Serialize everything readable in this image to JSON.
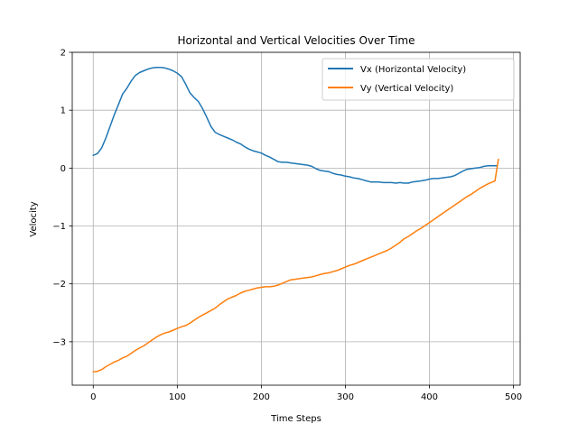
{
  "chart_data": {
    "type": "line",
    "title": "Horizontal and Vertical Velocities Over Time",
    "xlabel": "Time Steps",
    "ylabel": "Velocity",
    "xlim": [
      -25,
      508
    ],
    "ylim": [
      -3.75,
      2.0
    ],
    "xticks": [
      0,
      100,
      200,
      300,
      400,
      500
    ],
    "xtick_labels": [
      "0",
      "100",
      "200",
      "300",
      "400",
      "500"
    ],
    "yticks": [
      -3,
      -2,
      -1,
      0,
      1,
      2
    ],
    "ytick_labels": [
      "−3",
      "−2",
      "−1",
      "0",
      "1",
      "2"
    ],
    "grid": true,
    "legend_position": "upper right",
    "series": [
      {
        "name": "Vx (Horizontal Velocity)",
        "color": "#1f77b4",
        "x": [
          0,
          5,
          10,
          15,
          20,
          25,
          30,
          35,
          40,
          45,
          50,
          55,
          60,
          65,
          70,
          75,
          80,
          85,
          90,
          95,
          100,
          105,
          110,
          115,
          120,
          125,
          130,
          135,
          140,
          145,
          150,
          155,
          160,
          165,
          170,
          175,
          180,
          185,
          190,
          195,
          200,
          205,
          210,
          215,
          220,
          225,
          230,
          235,
          240,
          245,
          250,
          255,
          260,
          265,
          270,
          275,
          280,
          285,
          290,
          295,
          300,
          305,
          310,
          315,
          320,
          325,
          330,
          335,
          340,
          345,
          350,
          355,
          360,
          365,
          370,
          375,
          380,
          385,
          390,
          395,
          400,
          405,
          410,
          415,
          420,
          425,
          430,
          435,
          440,
          445,
          450,
          455,
          460,
          465,
          470,
          475,
          480
        ],
        "y": [
          0.22,
          0.25,
          0.35,
          0.52,
          0.72,
          0.92,
          1.1,
          1.28,
          1.38,
          1.5,
          1.6,
          1.65,
          1.68,
          1.71,
          1.73,
          1.74,
          1.74,
          1.73,
          1.71,
          1.68,
          1.64,
          1.58,
          1.45,
          1.3,
          1.22,
          1.15,
          1.03,
          0.88,
          0.72,
          0.62,
          0.58,
          0.55,
          0.52,
          0.49,
          0.45,
          0.42,
          0.37,
          0.33,
          0.3,
          0.28,
          0.26,
          0.22,
          0.19,
          0.15,
          0.11,
          0.1,
          0.1,
          0.09,
          0.08,
          0.07,
          0.06,
          0.05,
          0.03,
          -0.01,
          -0.04,
          -0.05,
          -0.06,
          -0.09,
          -0.11,
          -0.12,
          -0.14,
          -0.15,
          -0.17,
          -0.18,
          -0.2,
          -0.22,
          -0.24,
          -0.24,
          -0.24,
          -0.25,
          -0.25,
          -0.25,
          -0.26,
          -0.25,
          -0.26,
          -0.26,
          -0.24,
          -0.23,
          -0.22,
          -0.21,
          -0.19,
          -0.18,
          -0.18,
          -0.17,
          -0.16,
          -0.15,
          -0.13,
          -0.09,
          -0.05,
          -0.02,
          -0.01,
          0.0,
          0.01,
          0.03,
          0.04,
          0.04,
          0.04
        ]
      },
      {
        "name": "Vy (Vertical Velocity)",
        "color": "#ff7f0e",
        "x": [
          0,
          5,
          10,
          15,
          20,
          25,
          30,
          35,
          40,
          45,
          50,
          55,
          60,
          65,
          70,
          75,
          80,
          85,
          90,
          95,
          100,
          105,
          110,
          115,
          120,
          125,
          130,
          135,
          140,
          145,
          150,
          155,
          160,
          165,
          170,
          175,
          180,
          185,
          190,
          195,
          200,
          205,
          210,
          215,
          220,
          225,
          230,
          235,
          240,
          245,
          250,
          255,
          260,
          265,
          270,
          275,
          280,
          285,
          290,
          295,
          300,
          305,
          310,
          315,
          320,
          325,
          330,
          335,
          340,
          345,
          350,
          355,
          360,
          365,
          370,
          375,
          380,
          385,
          390,
          395,
          400,
          405,
          410,
          415,
          420,
          425,
          430,
          435,
          440,
          445,
          450,
          455,
          460,
          465,
          470,
          475,
          478,
          482
        ],
        "y": [
          -3.52,
          -3.51,
          -3.48,
          -3.43,
          -3.39,
          -3.35,
          -3.32,
          -3.28,
          -3.25,
          -3.2,
          -3.15,
          -3.11,
          -3.07,
          -3.02,
          -2.97,
          -2.92,
          -2.88,
          -2.85,
          -2.83,
          -2.8,
          -2.77,
          -2.74,
          -2.72,
          -2.68,
          -2.63,
          -2.58,
          -2.54,
          -2.5,
          -2.46,
          -2.42,
          -2.36,
          -2.31,
          -2.26,
          -2.23,
          -2.2,
          -2.16,
          -2.13,
          -2.11,
          -2.09,
          -2.07,
          -2.06,
          -2.05,
          -2.05,
          -2.04,
          -2.02,
          -1.99,
          -1.96,
          -1.93,
          -1.92,
          -1.91,
          -1.9,
          -1.89,
          -1.88,
          -1.86,
          -1.84,
          -1.82,
          -1.81,
          -1.79,
          -1.77,
          -1.74,
          -1.71,
          -1.68,
          -1.66,
          -1.63,
          -1.6,
          -1.57,
          -1.54,
          -1.51,
          -1.48,
          -1.45,
          -1.42,
          -1.38,
          -1.33,
          -1.28,
          -1.22,
          -1.18,
          -1.13,
          -1.08,
          -1.04,
          -0.99,
          -0.94,
          -0.89,
          -0.84,
          -0.79,
          -0.74,
          -0.69,
          -0.64,
          -0.59,
          -0.54,
          -0.49,
          -0.45,
          -0.4,
          -0.35,
          -0.31,
          -0.27,
          -0.24,
          -0.22,
          0.15
        ]
      }
    ]
  }
}
